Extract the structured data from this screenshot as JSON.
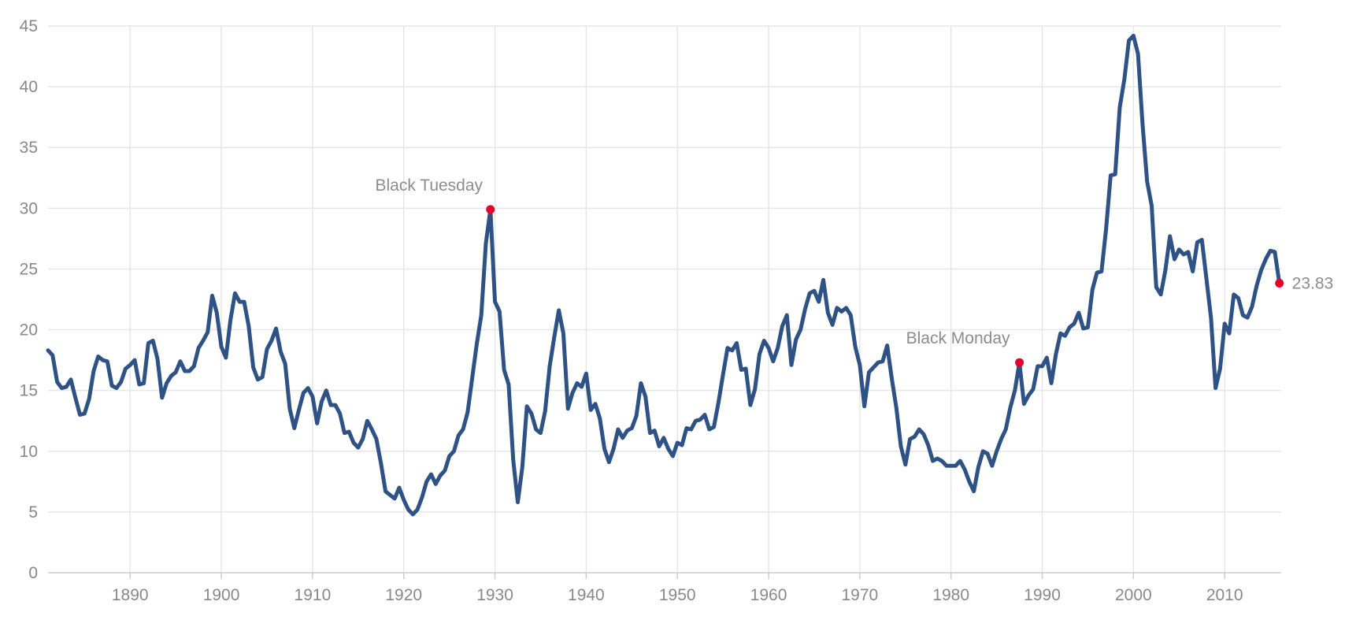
{
  "chart_data": {
    "type": "line",
    "title": "",
    "xlabel": "",
    "ylabel": "",
    "xlim": [
      1881,
      2016.2
    ],
    "ylim": [
      0,
      45
    ],
    "grid": true,
    "x_ticks": [
      1890,
      1900,
      1910,
      1920,
      1930,
      1940,
      1950,
      1960,
      1970,
      1980,
      1990,
      2000,
      2010
    ],
    "x_tick_labels": [
      "1890",
      "1900",
      "1910",
      "1920",
      "1930",
      "1940",
      "1950",
      "1960",
      "1970",
      "1980",
      "1990",
      "2000",
      "2010"
    ],
    "y_ticks": [
      0,
      5,
      10,
      15,
      20,
      25,
      30,
      35,
      40,
      45
    ],
    "y_tick_labels": [
      "0",
      "5",
      "10",
      "15",
      "20",
      "25",
      "30",
      "35",
      "40",
      "45"
    ],
    "series": [
      {
        "color": "#2e5285",
        "points": [
          [
            1881.0,
            18.3
          ],
          [
            1881.5,
            17.9
          ],
          [
            1882.0,
            15.7
          ],
          [
            1882.5,
            15.2
          ],
          [
            1883.0,
            15.3
          ],
          [
            1883.5,
            15.9
          ],
          [
            1884.0,
            14.4
          ],
          [
            1884.5,
            13.0
          ],
          [
            1885.0,
            13.1
          ],
          [
            1885.5,
            14.3
          ],
          [
            1886.0,
            16.6
          ],
          [
            1886.5,
            17.8
          ],
          [
            1887.0,
            17.5
          ],
          [
            1887.5,
            17.4
          ],
          [
            1888.0,
            15.4
          ],
          [
            1888.5,
            15.2
          ],
          [
            1889.0,
            15.7
          ],
          [
            1889.5,
            16.8
          ],
          [
            1890.0,
            17.1
          ],
          [
            1890.5,
            17.5
          ],
          [
            1891.0,
            15.5
          ],
          [
            1891.5,
            15.6
          ],
          [
            1892.0,
            18.9
          ],
          [
            1892.5,
            19.1
          ],
          [
            1893.0,
            17.6
          ],
          [
            1893.5,
            14.4
          ],
          [
            1894.0,
            15.6
          ],
          [
            1894.5,
            16.2
          ],
          [
            1895.0,
            16.5
          ],
          [
            1895.5,
            17.4
          ],
          [
            1896.0,
            16.6
          ],
          [
            1896.5,
            16.6
          ],
          [
            1897.0,
            17.0
          ],
          [
            1897.5,
            18.5
          ],
          [
            1898.0,
            19.1
          ],
          [
            1898.5,
            19.8
          ],
          [
            1899.0,
            22.8
          ],
          [
            1899.5,
            21.4
          ],
          [
            1900.0,
            18.6
          ],
          [
            1900.5,
            17.7
          ],
          [
            1901.0,
            20.8
          ],
          [
            1901.5,
            23.0
          ],
          [
            1902.0,
            22.3
          ],
          [
            1902.5,
            22.3
          ],
          [
            1903.0,
            20.3
          ],
          [
            1903.5,
            16.9
          ],
          [
            1904.0,
            15.9
          ],
          [
            1904.5,
            16.1
          ],
          [
            1905.0,
            18.4
          ],
          [
            1905.5,
            19.1
          ],
          [
            1906.0,
            20.1
          ],
          [
            1906.5,
            18.2
          ],
          [
            1907.0,
            17.2
          ],
          [
            1907.5,
            13.5
          ],
          [
            1908.0,
            11.9
          ],
          [
            1908.5,
            13.4
          ],
          [
            1909.0,
            14.8
          ],
          [
            1909.5,
            15.2
          ],
          [
            1910.0,
            14.5
          ],
          [
            1910.5,
            12.3
          ],
          [
            1911.0,
            14.1
          ],
          [
            1911.5,
            15.0
          ],
          [
            1912.0,
            13.8
          ],
          [
            1912.5,
            13.8
          ],
          [
            1913.0,
            13.1
          ],
          [
            1913.5,
            11.5
          ],
          [
            1914.0,
            11.6
          ],
          [
            1914.5,
            10.7
          ],
          [
            1915.0,
            10.3
          ],
          [
            1915.5,
            11.0
          ],
          [
            1916.0,
            12.5
          ],
          [
            1916.5,
            11.8
          ],
          [
            1917.0,
            11.0
          ],
          [
            1917.5,
            9.0
          ],
          [
            1918.0,
            6.7
          ],
          [
            1918.5,
            6.4
          ],
          [
            1919.0,
            6.1
          ],
          [
            1919.5,
            7.0
          ],
          [
            1920.0,
            6.0
          ],
          [
            1920.5,
            5.2
          ],
          [
            1921.0,
            4.8
          ],
          [
            1921.5,
            5.2
          ],
          [
            1922.0,
            6.2
          ],
          [
            1922.5,
            7.5
          ],
          [
            1923.0,
            8.1
          ],
          [
            1923.5,
            7.3
          ],
          [
            1924.0,
            8.0
          ],
          [
            1924.5,
            8.4
          ],
          [
            1925.0,
            9.6
          ],
          [
            1925.5,
            10.0
          ],
          [
            1926.0,
            11.3
          ],
          [
            1926.5,
            11.8
          ],
          [
            1927.0,
            13.2
          ],
          [
            1927.5,
            16.0
          ],
          [
            1928.0,
            18.8
          ],
          [
            1928.5,
            21.2
          ],
          [
            1929.0,
            27.1
          ],
          [
            1929.5,
            29.9
          ],
          [
            1930.0,
            22.3
          ],
          [
            1930.5,
            21.5
          ],
          [
            1931.0,
            16.7
          ],
          [
            1931.5,
            15.5
          ],
          [
            1932.0,
            9.3
          ],
          [
            1932.5,
            5.8
          ],
          [
            1933.0,
            8.7
          ],
          [
            1933.5,
            13.7
          ],
          [
            1934.0,
            13.1
          ],
          [
            1934.5,
            11.8
          ],
          [
            1935.0,
            11.5
          ],
          [
            1935.5,
            13.3
          ],
          [
            1936.0,
            17.0
          ],
          [
            1936.5,
            19.4
          ],
          [
            1937.0,
            21.6
          ],
          [
            1937.5,
            19.7
          ],
          [
            1938.0,
            13.5
          ],
          [
            1938.5,
            14.8
          ],
          [
            1939.0,
            15.6
          ],
          [
            1939.5,
            15.3
          ],
          [
            1940.0,
            16.4
          ],
          [
            1940.5,
            13.4
          ],
          [
            1941.0,
            13.9
          ],
          [
            1941.5,
            12.7
          ],
          [
            1942.0,
            10.2
          ],
          [
            1942.5,
            9.1
          ],
          [
            1943.0,
            10.2
          ],
          [
            1943.5,
            11.8
          ],
          [
            1944.0,
            11.1
          ],
          [
            1944.5,
            11.7
          ],
          [
            1945.0,
            11.9
          ],
          [
            1945.5,
            12.9
          ],
          [
            1946.0,
            15.6
          ],
          [
            1946.5,
            14.5
          ],
          [
            1947.0,
            11.5
          ],
          [
            1947.5,
            11.7
          ],
          [
            1948.0,
            10.4
          ],
          [
            1948.5,
            11.1
          ],
          [
            1949.0,
            10.2
          ],
          [
            1949.5,
            9.6
          ],
          [
            1950.0,
            10.7
          ],
          [
            1950.5,
            10.5
          ],
          [
            1951.0,
            11.9
          ],
          [
            1951.5,
            11.8
          ],
          [
            1952.0,
            12.5
          ],
          [
            1952.5,
            12.6
          ],
          [
            1953.0,
            13.0
          ],
          [
            1953.5,
            11.8
          ],
          [
            1954.0,
            12.0
          ],
          [
            1954.5,
            14.0
          ],
          [
            1955.0,
            16.3
          ],
          [
            1955.5,
            18.5
          ],
          [
            1956.0,
            18.3
          ],
          [
            1956.5,
            18.9
          ],
          [
            1957.0,
            16.7
          ],
          [
            1957.5,
            16.8
          ],
          [
            1958.0,
            13.8
          ],
          [
            1958.5,
            15.1
          ],
          [
            1959.0,
            18.0
          ],
          [
            1959.5,
            19.1
          ],
          [
            1960.0,
            18.5
          ],
          [
            1960.5,
            17.4
          ],
          [
            1961.0,
            18.5
          ],
          [
            1961.5,
            20.3
          ],
          [
            1962.0,
            21.2
          ],
          [
            1962.5,
            17.1
          ],
          [
            1963.0,
            19.2
          ],
          [
            1963.5,
            20.0
          ],
          [
            1964.0,
            21.7
          ],
          [
            1964.5,
            23.0
          ],
          [
            1965.0,
            23.2
          ],
          [
            1965.5,
            22.3
          ],
          [
            1966.0,
            24.1
          ],
          [
            1966.5,
            21.4
          ],
          [
            1967.0,
            20.4
          ],
          [
            1967.5,
            21.8
          ],
          [
            1968.0,
            21.5
          ],
          [
            1968.5,
            21.8
          ],
          [
            1969.0,
            21.2
          ],
          [
            1969.5,
            18.6
          ],
          [
            1970.0,
            17.1
          ],
          [
            1970.5,
            13.7
          ],
          [
            1971.0,
            16.5
          ],
          [
            1971.5,
            16.9
          ],
          [
            1972.0,
            17.3
          ],
          [
            1972.5,
            17.4
          ],
          [
            1973.0,
            18.7
          ],
          [
            1973.5,
            16.0
          ],
          [
            1974.0,
            13.6
          ],
          [
            1974.5,
            10.4
          ],
          [
            1975.0,
            8.9
          ],
          [
            1975.5,
            11.0
          ],
          [
            1976.0,
            11.2
          ],
          [
            1976.5,
            11.8
          ],
          [
            1977.0,
            11.4
          ],
          [
            1977.5,
            10.5
          ],
          [
            1978.0,
            9.2
          ],
          [
            1978.5,
            9.4
          ],
          [
            1979.0,
            9.2
          ],
          [
            1979.5,
            8.8
          ],
          [
            1980.0,
            8.8
          ],
          [
            1980.5,
            8.8
          ],
          [
            1981.0,
            9.2
          ],
          [
            1981.5,
            8.5
          ],
          [
            1982.0,
            7.5
          ],
          [
            1982.5,
            6.7
          ],
          [
            1983.0,
            8.7
          ],
          [
            1983.5,
            10.0
          ],
          [
            1984.0,
            9.8
          ],
          [
            1984.5,
            8.8
          ],
          [
            1985.0,
            10.0
          ],
          [
            1985.5,
            11.0
          ],
          [
            1986.0,
            11.8
          ],
          [
            1986.5,
            13.6
          ],
          [
            1987.0,
            15.0
          ],
          [
            1987.5,
            17.3
          ],
          [
            1988.0,
            13.9
          ],
          [
            1988.5,
            14.6
          ],
          [
            1989.0,
            15.1
          ],
          [
            1989.5,
            17.0
          ],
          [
            1990.0,
            17.0
          ],
          [
            1990.5,
            17.7
          ],
          [
            1991.0,
            15.6
          ],
          [
            1991.5,
            18.0
          ],
          [
            1992.0,
            19.7
          ],
          [
            1992.5,
            19.5
          ],
          [
            1993.0,
            20.2
          ],
          [
            1993.5,
            20.5
          ],
          [
            1994.0,
            21.4
          ],
          [
            1994.5,
            20.1
          ],
          [
            1995.0,
            20.2
          ],
          [
            1995.5,
            23.3
          ],
          [
            1996.0,
            24.7
          ],
          [
            1996.5,
            24.8
          ],
          [
            1997.0,
            28.3
          ],
          [
            1997.5,
            32.7
          ],
          [
            1998.0,
            32.8
          ],
          [
            1998.5,
            38.3
          ],
          [
            1999.0,
            40.6
          ],
          [
            1999.5,
            43.8
          ],
          [
            2000.0,
            44.2
          ],
          [
            2000.5,
            42.7
          ],
          [
            2001.0,
            36.9
          ],
          [
            2001.5,
            32.2
          ],
          [
            2002.0,
            30.2
          ],
          [
            2002.5,
            23.5
          ],
          [
            2003.0,
            22.9
          ],
          [
            2003.5,
            24.9
          ],
          [
            2004.0,
            27.7
          ],
          [
            2004.5,
            25.8
          ],
          [
            2005.0,
            26.6
          ],
          [
            2005.5,
            26.2
          ],
          [
            2006.0,
            26.4
          ],
          [
            2006.5,
            24.8
          ],
          [
            2007.0,
            27.2
          ],
          [
            2007.5,
            27.4
          ],
          [
            2008.0,
            24.2
          ],
          [
            2008.5,
            21.0
          ],
          [
            2009.0,
            15.2
          ],
          [
            2009.5,
            16.8
          ],
          [
            2010.0,
            20.5
          ],
          [
            2010.5,
            19.7
          ],
          [
            2011.0,
            22.9
          ],
          [
            2011.5,
            22.6
          ],
          [
            2012.0,
            21.2
          ],
          [
            2012.5,
            21.0
          ],
          [
            2013.0,
            21.9
          ],
          [
            2013.5,
            23.6
          ],
          [
            2014.0,
            24.9
          ],
          [
            2014.5,
            25.8
          ],
          [
            2015.0,
            26.5
          ],
          [
            2015.5,
            26.4
          ],
          [
            2016.0,
            23.83
          ]
        ]
      }
    ],
    "annotations": [
      {
        "label": "Black Tuesday",
        "x": 1929.5,
        "y": 29.9,
        "color": "#e4002b",
        "label_side": "above"
      },
      {
        "label": "Black Monday",
        "x": 1987.5,
        "y": 17.3,
        "color": "#e4002b",
        "label_side": "above"
      },
      {
        "label": "23.83",
        "x": 2016.0,
        "y": 23.83,
        "color": "#e4002b",
        "label_side": "right"
      }
    ]
  }
}
